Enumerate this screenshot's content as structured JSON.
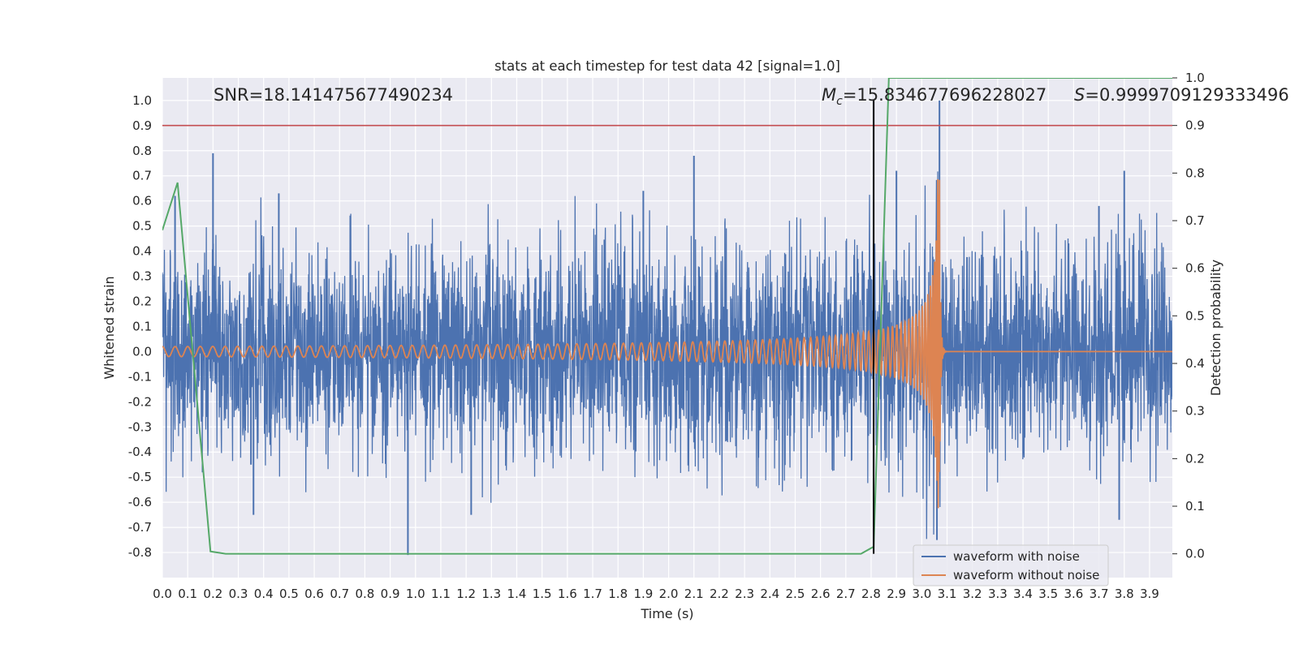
{
  "chart_data": {
    "type": "line",
    "title": "stats at each timestep for test data 42 [signal=1.0]",
    "xlabel": "Time (s)",
    "ylabel": "Whitened strain",
    "y2label": "Detection probability",
    "xlim": [
      0.0,
      3.99
    ],
    "ylim": [
      -0.9,
      1.09
    ],
    "y2lim": [
      -0.05,
      1.0
    ],
    "x_ticks": [
      "0.0",
      "0.1",
      "0.2",
      "0.3",
      "0.4",
      "0.5",
      "0.6",
      "0.7",
      "0.8",
      "0.9",
      "1.0",
      "1.1",
      "1.2",
      "1.3",
      "1.4",
      "1.5",
      "1.6",
      "1.7",
      "1.8",
      "1.9",
      "2.0",
      "2.1",
      "2.2",
      "2.3",
      "2.4",
      "2.5",
      "2.6",
      "2.7",
      "2.8",
      "2.9",
      "3.0",
      "3.1",
      "3.2",
      "3.3",
      "3.4",
      "3.5",
      "3.6",
      "3.7",
      "3.8",
      "3.9"
    ],
    "y_ticks": [
      "1.0",
      "0.9",
      "0.8",
      "0.7",
      "0.6",
      "0.5",
      "0.4",
      "0.3",
      "0.2",
      "0.1",
      "0.0",
      "-0.1",
      "-0.2",
      "-0.3",
      "-0.4",
      "-0.5",
      "-0.6",
      "-0.7",
      "-0.8"
    ],
    "y2_ticks": [
      "1.0",
      "0.9",
      "0.8",
      "0.7",
      "0.6",
      "0.5",
      "0.4",
      "0.3",
      "0.2",
      "0.1",
      "0.0"
    ],
    "grid": true,
    "legend_position": "bottom-right",
    "annotations": {
      "snr": "SNR=18.141475677490234",
      "mc_symbol": "M",
      "mc_sub": "c",
      "mc_value": "=15.834677696228027",
      "s_symbol": "S",
      "s_value": "=0.9999709129333496"
    },
    "threshold_y2": 0.9,
    "event_time": 2.81,
    "merger_time": 3.07,
    "noise_envelope_approx": 0.38,
    "series": [
      {
        "name": "waveform with noise",
        "color": "#4c72b0",
        "spikes": [
          {
            "x": 0.05,
            "y": 0.62
          },
          {
            "x": 0.2,
            "y": 0.79
          },
          {
            "x": 0.46,
            "y": 0.63
          },
          {
            "x": 0.97,
            "y": -0.81
          },
          {
            "x": 0.35,
            "y": -0.45
          },
          {
            "x": 1.22,
            "y": -0.65
          },
          {
            "x": 2.1,
            "y": 0.78
          },
          {
            "x": 1.9,
            "y": 0.64
          },
          {
            "x": 2.9,
            "y": 0.72
          },
          {
            "x": 3.07,
            "y": 1.0
          },
          {
            "x": 3.06,
            "y": -0.75
          },
          {
            "x": 3.7,
            "y": 0.58
          },
          {
            "x": 3.8,
            "y": 0.72
          },
          {
            "x": 3.78,
            "y": -0.67
          },
          {
            "x": 0.36,
            "y": -0.65
          }
        ]
      },
      {
        "name": "waveform without noise",
        "color": "#dd8452",
        "chirp_amplitude_start": 0.02,
        "chirp_amplitude_peak": 0.7,
        "chirp_frequency_start_hz": 20,
        "chirp_frequency_peak_hz": 200
      },
      {
        "name": "",
        "color": "#55a868",
        "axis": "right",
        "x": [
          0.0,
          0.06,
          0.19,
          0.25,
          2.76,
          2.81,
          2.87,
          3.99
        ],
        "y": [
          0.68,
          0.78,
          0.005,
          0.0,
          0.0,
          0.015,
          1.0,
          1.0
        ]
      }
    ]
  }
}
